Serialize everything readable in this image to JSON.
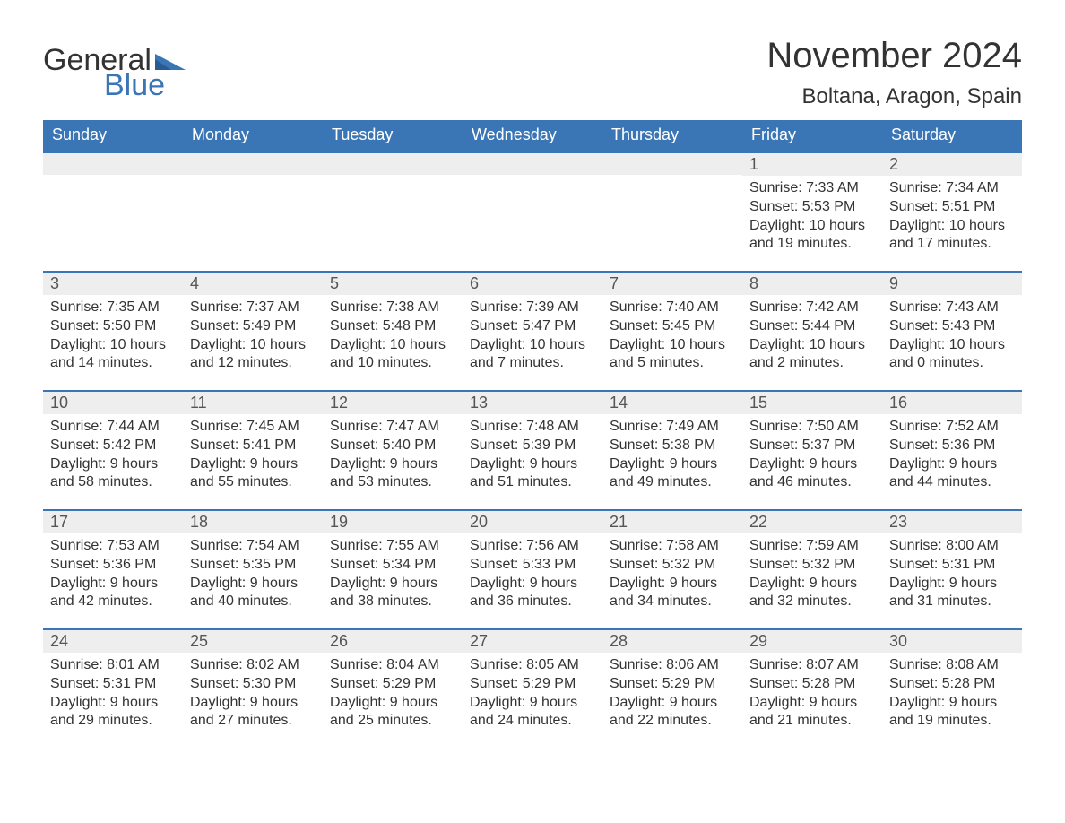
{
  "logo": {
    "text1": "General",
    "text2": "Blue",
    "flag_color": "#3a76b6"
  },
  "title": "November 2024",
  "location": "Boltana, Aragon, Spain",
  "colors": {
    "header_bg": "#3a76b6",
    "header_text": "#ffffff",
    "row_border": "#3a76b6",
    "daynum_bg": "#eeeeee",
    "body_text": "#333333"
  },
  "weekdays": [
    "Sunday",
    "Monday",
    "Tuesday",
    "Wednesday",
    "Thursday",
    "Friday",
    "Saturday"
  ],
  "leading_blanks": 5,
  "days": [
    {
      "n": 1,
      "sunrise": "7:33 AM",
      "sunset": "5:53 PM",
      "daylight": "10 hours and 19 minutes."
    },
    {
      "n": 2,
      "sunrise": "7:34 AM",
      "sunset": "5:51 PM",
      "daylight": "10 hours and 17 minutes."
    },
    {
      "n": 3,
      "sunrise": "7:35 AM",
      "sunset": "5:50 PM",
      "daylight": "10 hours and 14 minutes."
    },
    {
      "n": 4,
      "sunrise": "7:37 AM",
      "sunset": "5:49 PM",
      "daylight": "10 hours and 12 minutes."
    },
    {
      "n": 5,
      "sunrise": "7:38 AM",
      "sunset": "5:48 PM",
      "daylight": "10 hours and 10 minutes."
    },
    {
      "n": 6,
      "sunrise": "7:39 AM",
      "sunset": "5:47 PM",
      "daylight": "10 hours and 7 minutes."
    },
    {
      "n": 7,
      "sunrise": "7:40 AM",
      "sunset": "5:45 PM",
      "daylight": "10 hours and 5 minutes."
    },
    {
      "n": 8,
      "sunrise": "7:42 AM",
      "sunset": "5:44 PM",
      "daylight": "10 hours and 2 minutes."
    },
    {
      "n": 9,
      "sunrise": "7:43 AM",
      "sunset": "5:43 PM",
      "daylight": "10 hours and 0 minutes."
    },
    {
      "n": 10,
      "sunrise": "7:44 AM",
      "sunset": "5:42 PM",
      "daylight": "9 hours and 58 minutes."
    },
    {
      "n": 11,
      "sunrise": "7:45 AM",
      "sunset": "5:41 PM",
      "daylight": "9 hours and 55 minutes."
    },
    {
      "n": 12,
      "sunrise": "7:47 AM",
      "sunset": "5:40 PM",
      "daylight": "9 hours and 53 minutes."
    },
    {
      "n": 13,
      "sunrise": "7:48 AM",
      "sunset": "5:39 PM",
      "daylight": "9 hours and 51 minutes."
    },
    {
      "n": 14,
      "sunrise": "7:49 AM",
      "sunset": "5:38 PM",
      "daylight": "9 hours and 49 minutes."
    },
    {
      "n": 15,
      "sunrise": "7:50 AM",
      "sunset": "5:37 PM",
      "daylight": "9 hours and 46 minutes."
    },
    {
      "n": 16,
      "sunrise": "7:52 AM",
      "sunset": "5:36 PM",
      "daylight": "9 hours and 44 minutes."
    },
    {
      "n": 17,
      "sunrise": "7:53 AM",
      "sunset": "5:36 PM",
      "daylight": "9 hours and 42 minutes."
    },
    {
      "n": 18,
      "sunrise": "7:54 AM",
      "sunset": "5:35 PM",
      "daylight": "9 hours and 40 minutes."
    },
    {
      "n": 19,
      "sunrise": "7:55 AM",
      "sunset": "5:34 PM",
      "daylight": "9 hours and 38 minutes."
    },
    {
      "n": 20,
      "sunrise": "7:56 AM",
      "sunset": "5:33 PM",
      "daylight": "9 hours and 36 minutes."
    },
    {
      "n": 21,
      "sunrise": "7:58 AM",
      "sunset": "5:32 PM",
      "daylight": "9 hours and 34 minutes."
    },
    {
      "n": 22,
      "sunrise": "7:59 AM",
      "sunset": "5:32 PM",
      "daylight": "9 hours and 32 minutes."
    },
    {
      "n": 23,
      "sunrise": "8:00 AM",
      "sunset": "5:31 PM",
      "daylight": "9 hours and 31 minutes."
    },
    {
      "n": 24,
      "sunrise": "8:01 AM",
      "sunset": "5:31 PM",
      "daylight": "9 hours and 29 minutes."
    },
    {
      "n": 25,
      "sunrise": "8:02 AM",
      "sunset": "5:30 PM",
      "daylight": "9 hours and 27 minutes."
    },
    {
      "n": 26,
      "sunrise": "8:04 AM",
      "sunset": "5:29 PM",
      "daylight": "9 hours and 25 minutes."
    },
    {
      "n": 27,
      "sunrise": "8:05 AM",
      "sunset": "5:29 PM",
      "daylight": "9 hours and 24 minutes."
    },
    {
      "n": 28,
      "sunrise": "8:06 AM",
      "sunset": "5:29 PM",
      "daylight": "9 hours and 22 minutes."
    },
    {
      "n": 29,
      "sunrise": "8:07 AM",
      "sunset": "5:28 PM",
      "daylight": "9 hours and 21 minutes."
    },
    {
      "n": 30,
      "sunrise": "8:08 AM",
      "sunset": "5:28 PM",
      "daylight": "9 hours and 19 minutes."
    }
  ]
}
